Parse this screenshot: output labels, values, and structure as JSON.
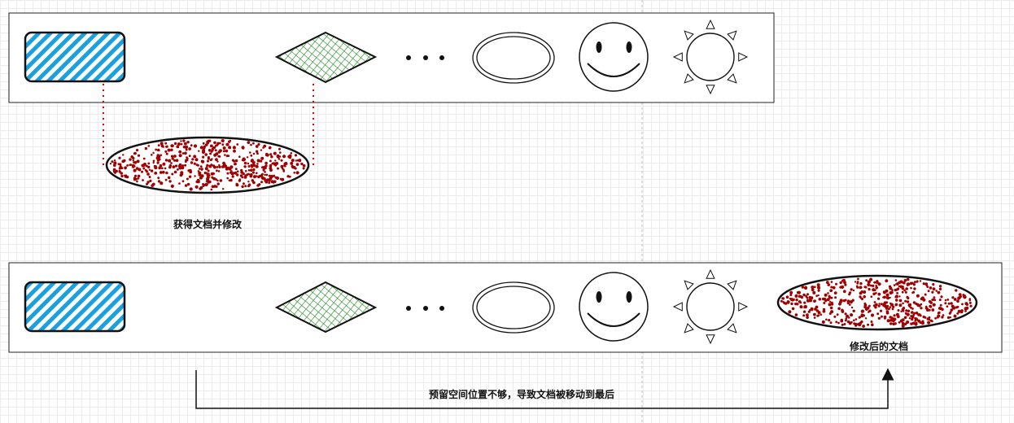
{
  "labels": {
    "modify_note": "获得文档并修改",
    "modified_doc": "修改后的文档",
    "move_note": "预留空间位置不够，导致文档被移动到最后"
  },
  "colors": {
    "rect_fill": "#1aa0e0",
    "diamond_hatch": "#2a8a2a",
    "dot_red": "#a00000",
    "dotted_line": "#ee0000",
    "outline": "#111111"
  }
}
